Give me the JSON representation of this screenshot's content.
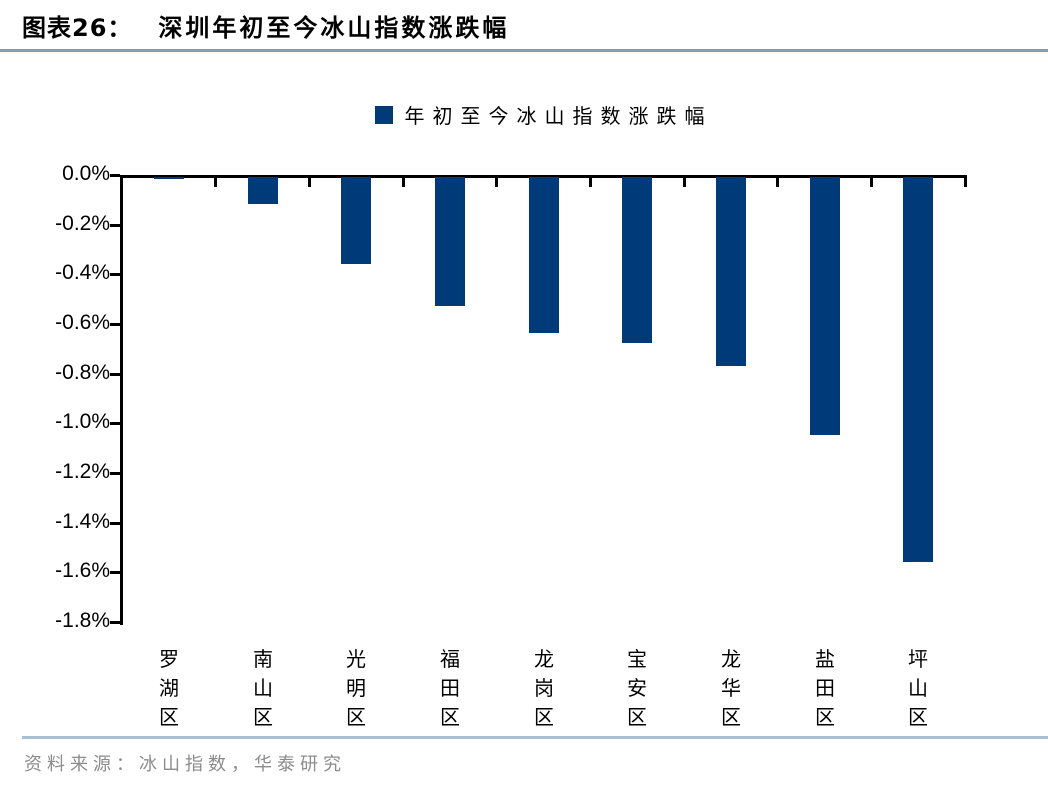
{
  "figure": {
    "label": "图表26：",
    "title": "深圳年初至今冰山指数涨跌幅"
  },
  "legend": {
    "label": "年初至今冰山指数涨跌幅"
  },
  "footer": {
    "source": "资料来源：冰山指数，华泰研究"
  },
  "colors": {
    "bar": "#003a78",
    "legend_swatch": "#003a78",
    "title_rule": "#7f9db9",
    "footer_rule": "#a8bfd4",
    "axis": "#000000",
    "footer_text": "#8c8c8c"
  },
  "chart_data": {
    "type": "bar",
    "title": "深圳年初至今冰山指数涨跌幅",
    "series_name": "年初至今冰山指数涨跌幅",
    "categories": [
      "罗湖区",
      "南山区",
      "光明区",
      "福田区",
      "龙岗区",
      "宝安区",
      "龙华区",
      "盐田区",
      "坪山区"
    ],
    "values": [
      -0.01,
      -0.11,
      -0.35,
      -0.52,
      -0.63,
      -0.67,
      -0.76,
      -1.04,
      -1.55
    ],
    "unit": "%",
    "xlabel": "",
    "ylabel": "",
    "ylim": [
      -1.8,
      0
    ],
    "ytick_step": 0.2,
    "yticks": [
      "0.0%",
      "-0.2%",
      "-0.4%",
      "-0.6%",
      "-0.8%",
      "-1.0%",
      "-1.2%",
      "-1.4%",
      "-1.6%",
      "-1.8%"
    ],
    "grid": false,
    "legend_position": "top-center"
  }
}
